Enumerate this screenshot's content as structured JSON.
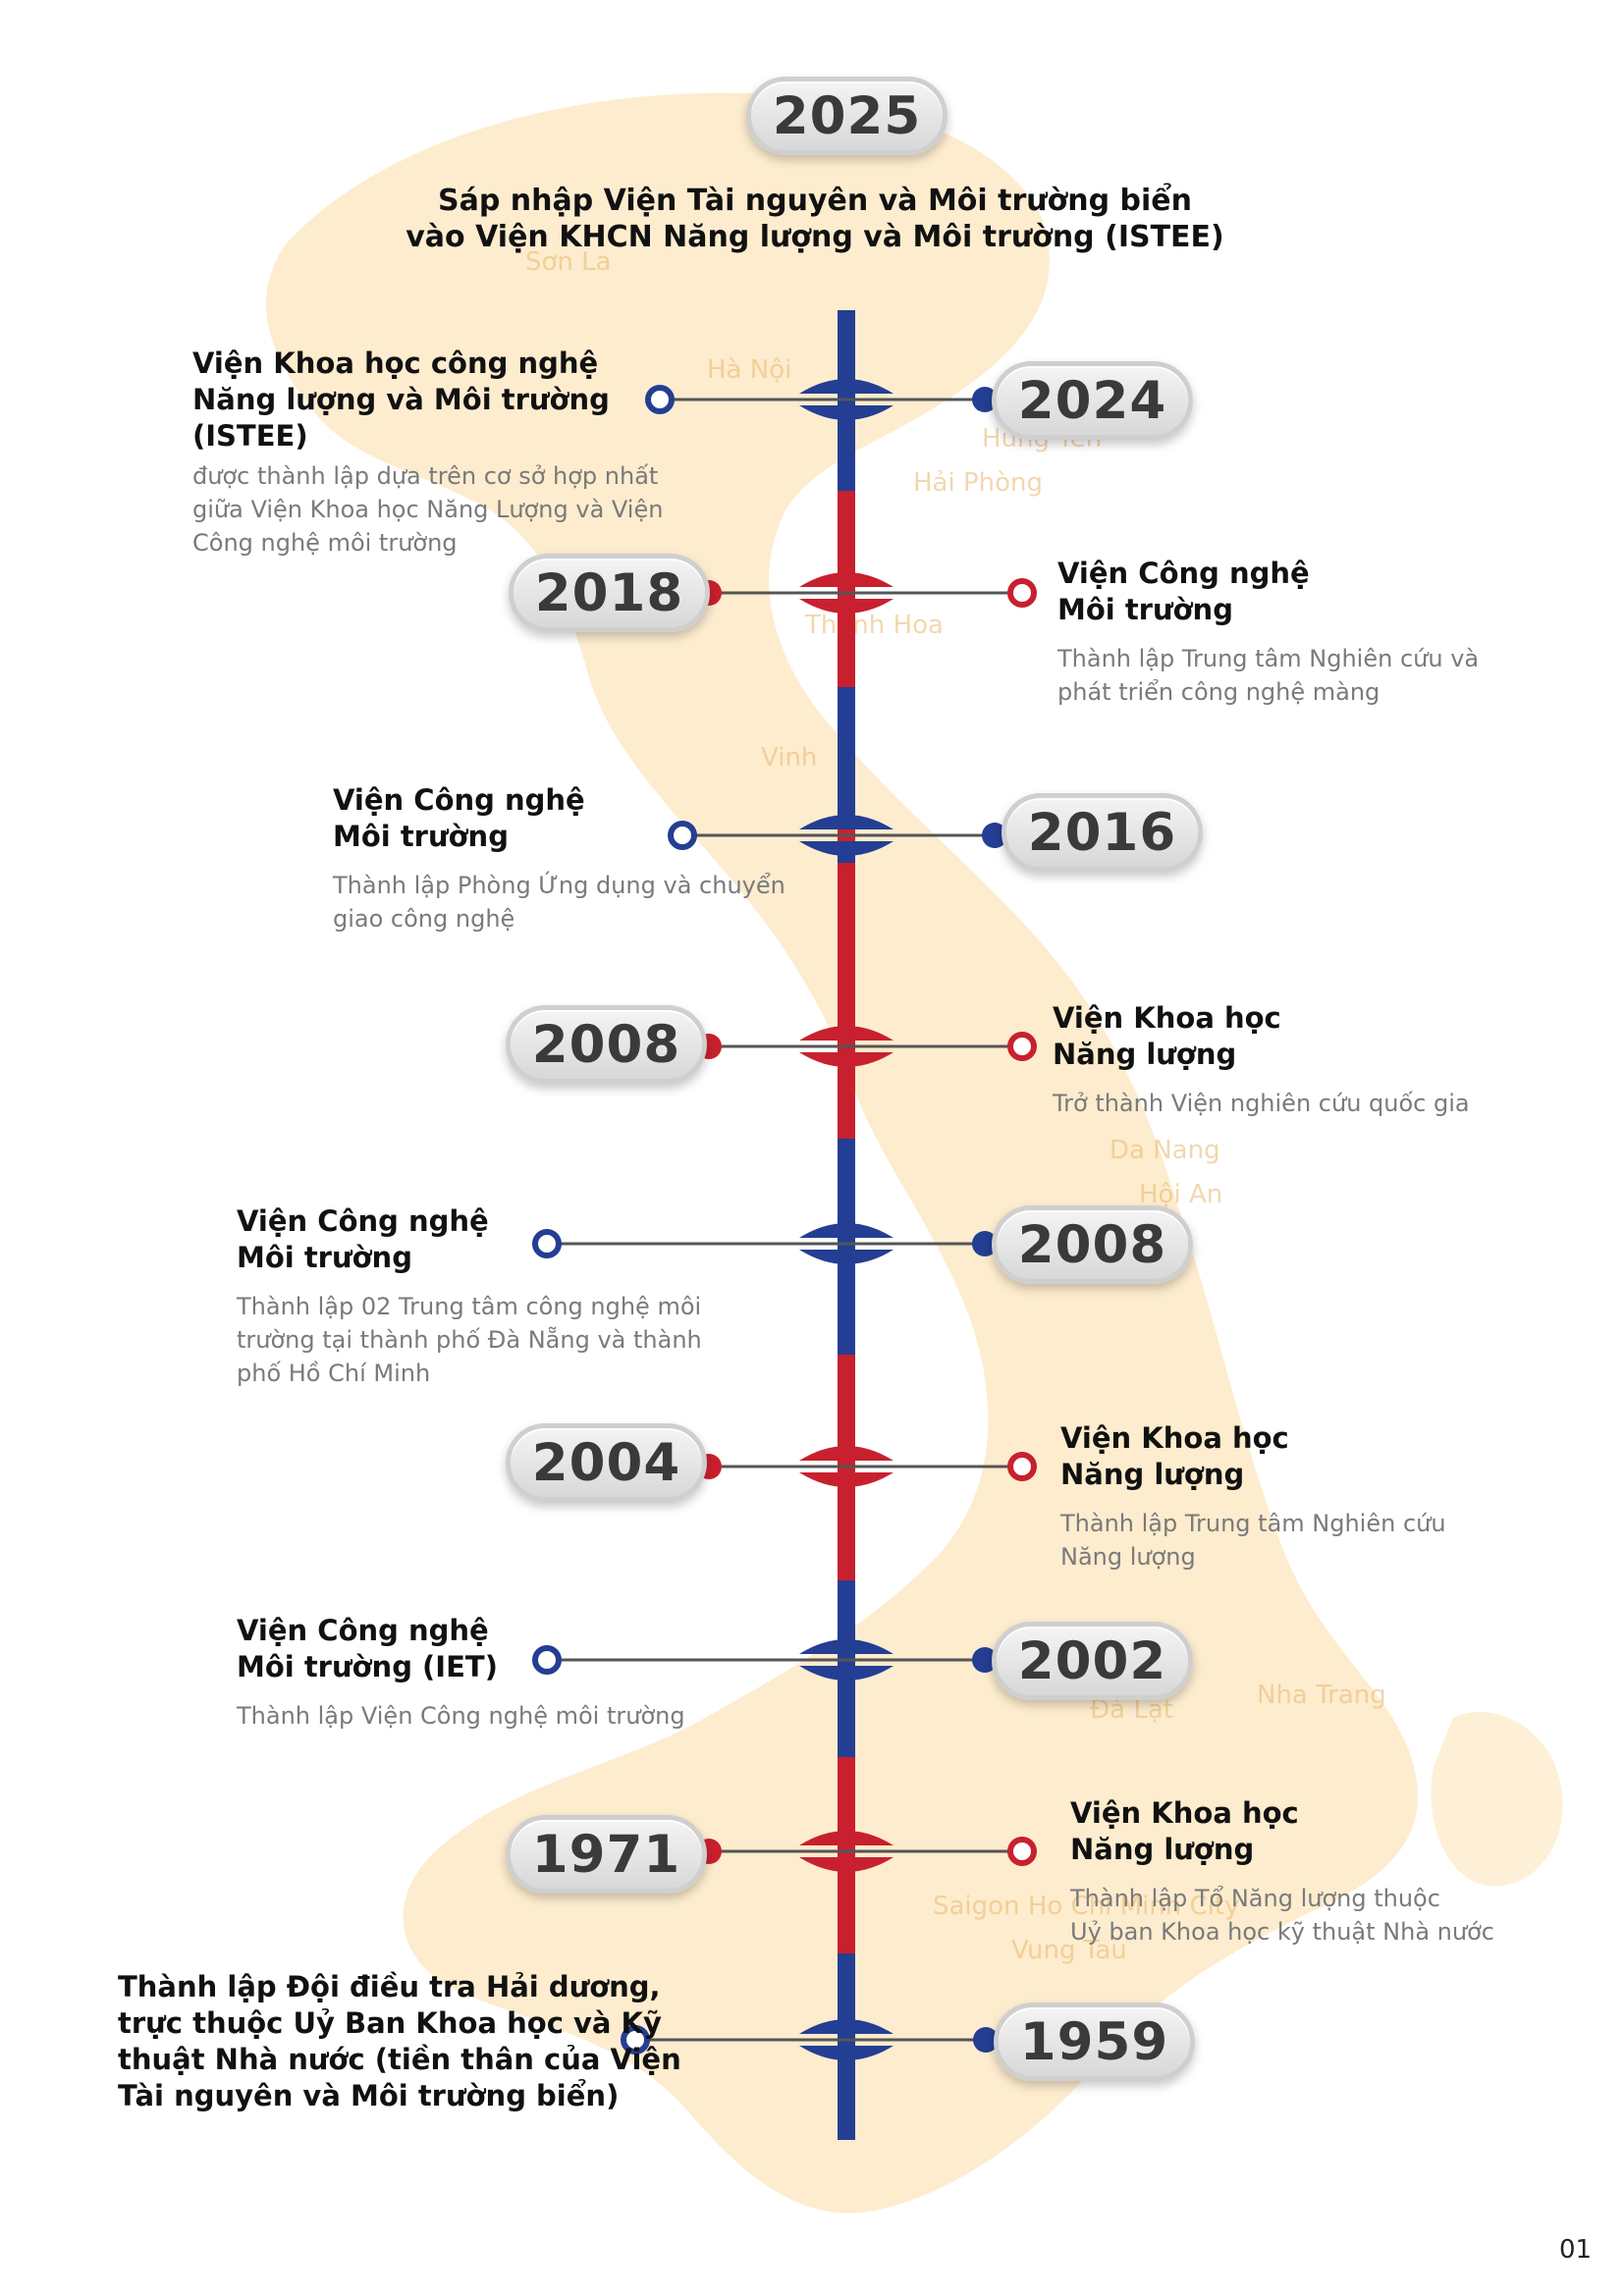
{
  "header": {
    "year": "2025",
    "title_line1": "Sáp nhập Viện Tài nguyên và Môi trường biển",
    "title_line2": "vào Viện KHCN Năng lượng và Môi trường (ISTEE)"
  },
  "map_labels": {
    "son_la": "Sơn La",
    "ha_noi": "Hà Nội",
    "hung_yen": "Hưng Yên",
    "hai_phong": "Hải Phòng",
    "thanh_hoa": "Thanh Hoa",
    "vinh": "Vinh",
    "da_nang": "Da Nang",
    "hoi_an": "Hội An",
    "nha_trang": "Nha Trang",
    "da_lat": "Đà Lạt",
    "saigon": "Saigon Ho Chi Minh City",
    "vung_tau": "Vung Tau"
  },
  "events": [
    {
      "year": "2024",
      "title": [
        "Viện Khoa học công nghệ",
        "Năng lượng và Môi trường",
        "(ISTEE)"
      ],
      "desc": [
        "được thành lập dựa trên cơ sở hợp nhất",
        "giữa Viện Khoa học Năng Lượng và Viện",
        "Công nghệ môi trường"
      ]
    },
    {
      "year": "2018",
      "title": [
        "Viện Công nghệ",
        "Môi trường"
      ],
      "desc": [
        "Thành lập Trung tâm Nghiên cứu và",
        "phát triển công nghệ màng"
      ]
    },
    {
      "year": "2016",
      "title": [
        "Viện Công nghệ",
        "Môi trường"
      ],
      "desc": [
        "Thành lập Phòng Ứng dụng và chuyển",
        "giao công nghệ"
      ]
    },
    {
      "year": "2008",
      "title": [
        "Viện Khoa học",
        "Năng lượng"
      ],
      "desc": [
        "Trở thành Viện nghiên cứu quốc gia"
      ]
    },
    {
      "year": "2008",
      "title": [
        "Viện Công nghệ",
        "Môi trường"
      ],
      "desc": [
        "Thành lập 02 Trung tâm công nghệ môi",
        "trường tại thành phố Đà Nẵng và thành",
        "phố Hồ Chí Minh"
      ]
    },
    {
      "year": "2004",
      "title": [
        "Viện Khoa học",
        "Năng lượng"
      ],
      "desc": [
        "Thành lập Trung tâm Nghiên cứu",
        "Năng lượng"
      ]
    },
    {
      "year": "2002",
      "title": [
        "Viện Công nghệ",
        "Môi trường (IET)"
      ],
      "desc": [
        "Thành lập Viện Công nghệ môi trường"
      ]
    },
    {
      "year": "1971",
      "title": [
        "Viện Khoa học",
        "Năng lượng"
      ],
      "desc": [
        "Thành lập Tổ Năng lượng thuộc",
        "Uỷ ban Khoa học kỹ thuật Nhà nước"
      ]
    },
    {
      "year": "1959",
      "title": [
        "Thành lập Đội điều tra Hải dương,",
        "trực thuộc Uỷ Ban Khoa học và Kỹ",
        "thuật Nhà nước (tiền thân của Viện",
        "Tài nguyên và Môi trường biển)"
      ],
      "desc": []
    }
  ],
  "colors": {
    "red": "#c8202e",
    "blue": "#233e93",
    "map": "#fbe3b6"
  },
  "page_number": "01"
}
